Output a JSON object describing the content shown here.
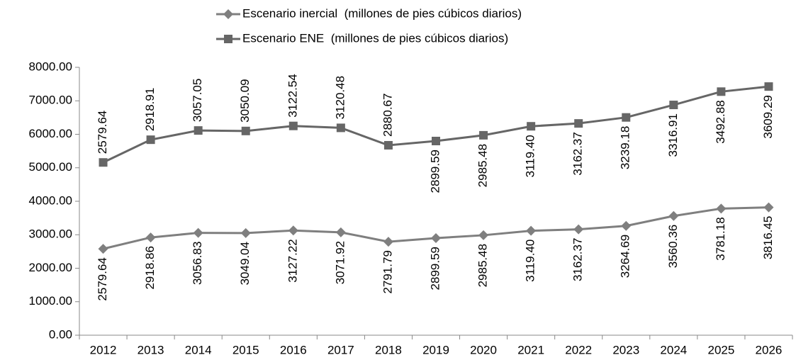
{
  "chart_data": {
    "type": "line",
    "stacked": true,
    "categories": [
      "2012",
      "2013",
      "2014",
      "2015",
      "2016",
      "2017",
      "2018",
      "2019",
      "2020",
      "2021",
      "2022",
      "2023",
      "2024",
      "2025",
      "2026"
    ],
    "series": [
      {
        "name": "Escenario inercial  (millones de pies cúbicos diarios)",
        "color": "#7f7f7f",
        "marker": "diamond",
        "values": [
          2579.64,
          2918.86,
          3056.83,
          3049.04,
          3127.22,
          3071.92,
          2791.79,
          2899.59,
          2985.48,
          3119.4,
          3162.37,
          3264.69,
          3560.36,
          3781.18,
          3816.45
        ],
        "value_labels": [
          "2579.64",
          "2918.86",
          "3056.83",
          "3049.04",
          "3127.22",
          "3071.92",
          "2791.79",
          "2899.59",
          "2985.48",
          "3119.40",
          "3162.37",
          "3264.69",
          "3560.36",
          "3781.18",
          "3816.45"
        ]
      },
      {
        "name": "Escenario ENE  (millones de pies cúbicos diarios)",
        "color": "#666666",
        "marker": "square",
        "values": [
          2579.64,
          2918.91,
          3057.05,
          3050.09,
          3122.54,
          3120.48,
          2880.67,
          2899.59,
          2985.48,
          3119.4,
          3162.37,
          3239.18,
          3316.91,
          3492.88,
          3609.29
        ],
        "value_labels": [
          "2579.64",
          "2918.91",
          "3057.05",
          "3050.09",
          "3122.54",
          "3120.48",
          "2880.67",
          "2899.59",
          "2985.48",
          "3119.40",
          "3162.37",
          "3239.18",
          "3316.91",
          "3492.88",
          "3609.29"
        ]
      }
    ],
    "ylim": [
      0,
      8000
    ],
    "yticks": [
      {
        "value": 0,
        "label": "0.00"
      },
      {
        "value": 1000,
        "label": "1000.00"
      },
      {
        "value": 2000,
        "label": "2000.00"
      },
      {
        "value": 3000,
        "label": "3000.00"
      },
      {
        "value": 4000,
        "label": "4000.00"
      },
      {
        "value": 5000,
        "label": "5000.00"
      },
      {
        "value": 6000,
        "label": "6000.00"
      },
      {
        "value": 7000,
        "label": "7000.00"
      },
      {
        "value": 8000,
        "label": "8000.00"
      }
    ],
    "grid": false,
    "legend": "top"
  }
}
